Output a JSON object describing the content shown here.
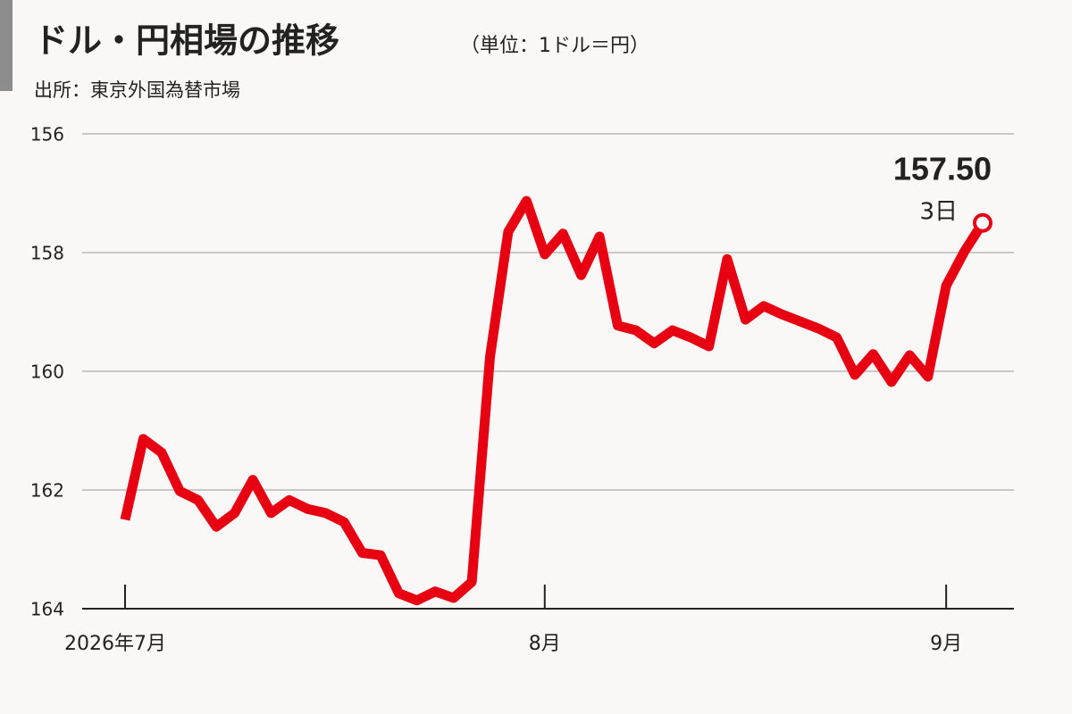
{
  "chart_data": {
    "type": "line",
    "title": "ドル・円相場の推移",
    "subtitle": "（単位：1ドル＝円）",
    "source": "出所：東京外国為替市場",
    "annotations": [
      "157.50",
      "3日"
    ],
    "categories": [
      "2026年7月",
      null,
      null,
      null,
      null,
      null,
      null,
      null,
      null,
      null,
      null,
      null,
      null,
      null,
      null,
      null,
      null,
      null,
      null,
      null,
      null,
      null,
      null,
      "8月",
      null,
      null,
      null,
      null,
      null,
      null,
      null,
      null,
      null,
      null,
      null,
      null,
      null,
      null,
      null,
      null,
      null,
      null,
      null,
      null,
      null,
      "9月",
      null,
      null
    ],
    "values": [
      162.5,
      161.14,
      161.37,
      162.02,
      162.17,
      162.62,
      162.39,
      161.83,
      162.39,
      162.17,
      162.32,
      162.39,
      162.54,
      163.06,
      163.1,
      163.74,
      163.86,
      163.71,
      163.82,
      163.55,
      159.76,
      157.65,
      157.13,
      158.03,
      157.68,
      158.38,
      157.73,
      159.23,
      159.31,
      159.53,
      159.31,
      159.43,
      159.58,
      158.11,
      159.13,
      158.9,
      159.04,
      159.16,
      159.28,
      159.43,
      160.06,
      159.71,
      160.18,
      159.73,
      160.09,
      158.56,
      157.98,
      157.5
    ],
    "color": "#e60012",
    "ylim": [
      156,
      164
    ],
    "y_inverted": true,
    "yticks": [
      156,
      158,
      160,
      162,
      164
    ],
    "grid": true
  }
}
